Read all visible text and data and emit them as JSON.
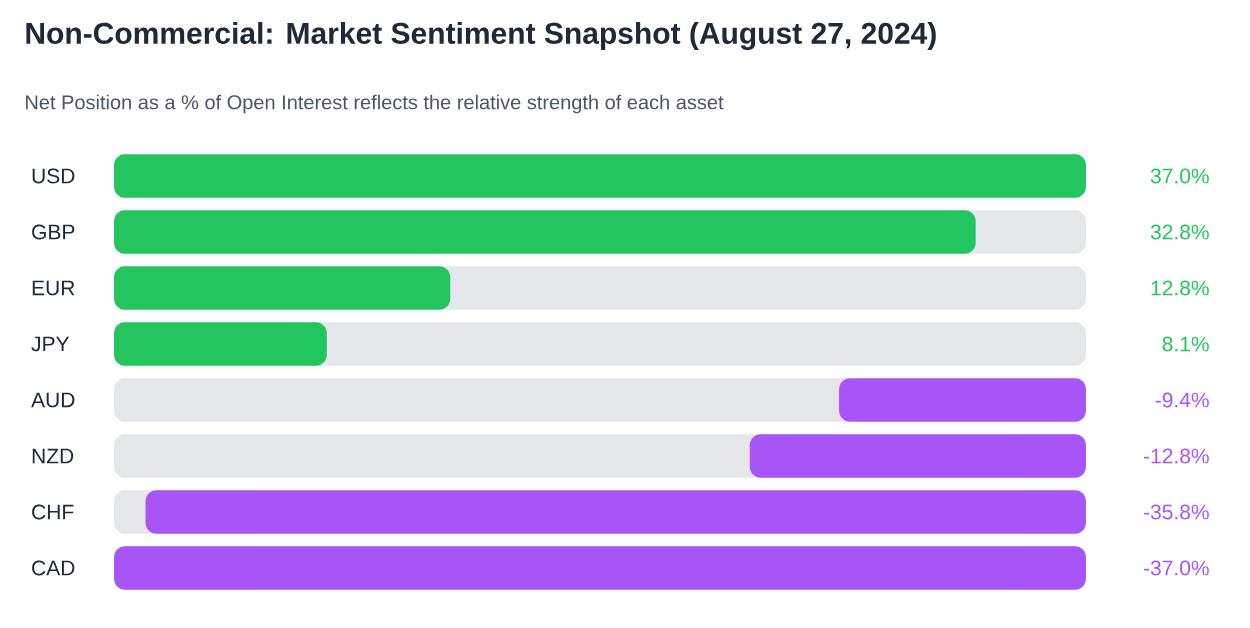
{
  "chart_data": [
    {
      "type": "bar",
      "orientation": "horizontal",
      "title": "Non-Commercial: Market Sentiment Snapshot (August 27, 2024)",
      "subtitle": "Net Position as a % of Open Interest reflects the relative strength of each asset",
      "categories": [
        "USD",
        "GBP",
        "EUR",
        "JPY"
      ],
      "values": [
        37.0,
        32.8,
        12.8,
        8.1
      ],
      "colors": [
        "#22c55e",
        "#22c55e",
        "#22c55e",
        "#22c55e"
      ],
      "value_labels": [
        "37.0%",
        "32.8%",
        "12.8%",
        "8.1%"
      ],
      "xlim": [
        0,
        37
      ],
      "tick_labels": "y"
    },
    {
      "type": "bar",
      "orientation": "horizontal",
      "categories": [
        "AUD",
        "NZD",
        "CHF",
        "CAD"
      ],
      "values": [
        -9.4,
        -12.8,
        -35.8,
        -37.0
      ],
      "colors": [
        "#a855f7",
        "#a855f7",
        "#a855f7",
        "#a855f7"
      ],
      "value_labels": [
        "-9.4%",
        "-12.8%",
        "-35.8%",
        "-37.0%"
      ],
      "xlim": [
        -37,
        0
      ],
      "tick_labels": "y"
    }
  ]
}
